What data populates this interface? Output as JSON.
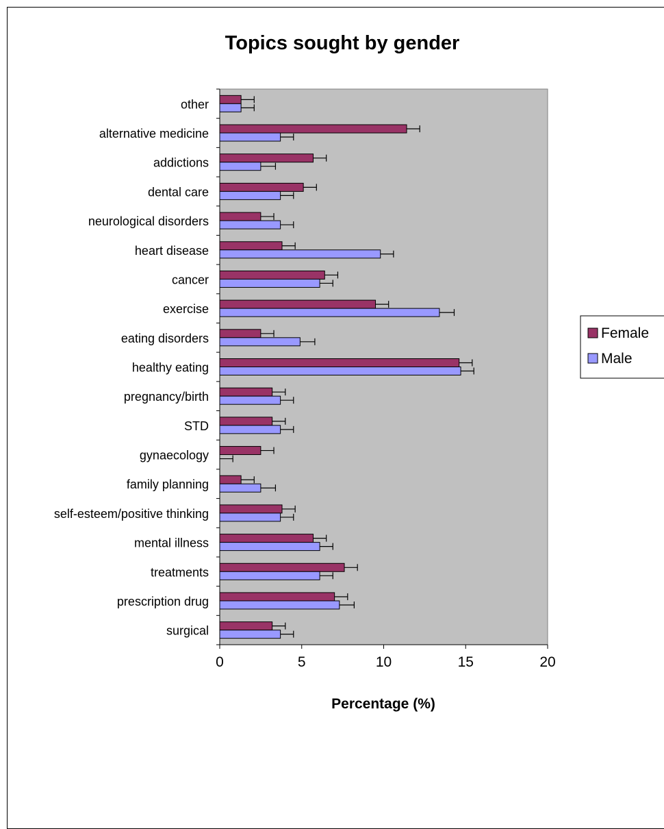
{
  "chart_data": {
    "type": "bar",
    "orientation": "horizontal",
    "title": "Topics sought by gender",
    "xlabel": "Percentage (%)",
    "ylabel": "",
    "xlim": [
      0,
      20
    ],
    "xticks": [
      "0",
      "5",
      "10",
      "15",
      "20"
    ],
    "grid": false,
    "legend_position": "right",
    "categories": [
      "other",
      "alternative medicine",
      "addictions",
      "dental care",
      "neurological disorders",
      "heart disease",
      "cancer",
      "exercise",
      "eating disorders",
      "healthy eating",
      "pregnancy/birth",
      "STD",
      "gynaecology",
      "family planning",
      "self-esteem/positive thinking",
      "mental illness",
      "treatments",
      "prescription drug",
      "surgical"
    ],
    "series": [
      {
        "name": "Female",
        "color": "#993366",
        "values": [
          1.3,
          11.4,
          5.7,
          5.1,
          2.5,
          3.8,
          6.4,
          9.5,
          2.5,
          14.6,
          3.2,
          3.2,
          2.5,
          1.3,
          3.8,
          5.7,
          7.6,
          7.0,
          3.2
        ],
        "error": [
          0.8,
          0.8,
          0.8,
          0.8,
          0.8,
          0.8,
          0.8,
          0.8,
          0.8,
          0.8,
          0.8,
          0.8,
          0.8,
          0.8,
          0.8,
          0.8,
          0.8,
          0.8,
          0.8
        ]
      },
      {
        "name": "Male",
        "color": "#9999FF",
        "values": [
          1.3,
          3.7,
          2.5,
          3.7,
          3.7,
          9.8,
          6.1,
          13.4,
          4.9,
          14.7,
          3.7,
          3.7,
          0.0,
          2.5,
          3.7,
          6.1,
          6.1,
          7.3,
          3.7
        ],
        "error": [
          0.8,
          0.8,
          0.9,
          0.8,
          0.8,
          0.8,
          0.8,
          0.9,
          0.9,
          0.8,
          0.8,
          0.8,
          0.8,
          0.9,
          0.8,
          0.8,
          0.8,
          0.9,
          0.8
        ]
      }
    ]
  },
  "colors": {
    "plot_background": "#C0C0C0",
    "female": "#993366",
    "male": "#9999FF"
  }
}
